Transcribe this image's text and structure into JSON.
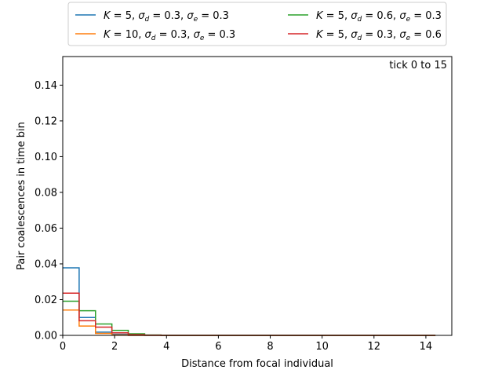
{
  "chart_data": {
    "type": "line",
    "drawstyle": "steps-post",
    "annotation": "tick 0 to 15",
    "xlabel": "Distance from focal individual",
    "ylabel": "Pair coalescences in time bin",
    "xlim": [
      0,
      15
    ],
    "ylim": [
      0,
      0.156
    ],
    "xticks": [
      0,
      2,
      4,
      6,
      8,
      10,
      12,
      14
    ],
    "yticks": [
      0.0,
      0.02,
      0.04,
      0.06,
      0.08,
      0.1,
      0.12,
      0.14
    ],
    "xtick_labels": [
      "0",
      "2",
      "4",
      "6",
      "8",
      "10",
      "12",
      "14"
    ],
    "ytick_labels": [
      "0.00",
      "0.02",
      "0.04",
      "0.06",
      "0.08",
      "0.10",
      "0.12",
      "0.14"
    ],
    "grid": false,
    "legend_placement": "above plot, two columns",
    "bin_edges": [
      0.0,
      0.632,
      1.263,
      1.895,
      2.526,
      3.158,
      3.789,
      4.421,
      5.053,
      5.684,
      6.316,
      6.947,
      7.579,
      8.211,
      8.842,
      9.474,
      10.105,
      10.737,
      11.368,
      12.0,
      12.632,
      13.263,
      13.895,
      14.368
    ],
    "series": [
      {
        "name": "K=5, σd=0.3, σe=0.3",
        "legend": {
          "k": "5",
          "sd": "0.3",
          "se": "0.3"
        },
        "color": "#1f77b4",
        "values": [
          0.0378,
          0.01,
          0.0018,
          0.0006,
          0.0001,
          0,
          0,
          0,
          0,
          0,
          0,
          0,
          0,
          0,
          0,
          0,
          0,
          0,
          0,
          0,
          0,
          0,
          0
        ]
      },
      {
        "name": "K=10, σd=0.3, σe=0.3",
        "legend": {
          "k": "10",
          "sd": "0.3",
          "se": "0.3"
        },
        "color": "#ff7f0e",
        "values": [
          0.0142,
          0.0052,
          0.0011,
          0.0002,
          0.0,
          0,
          0,
          0,
          0,
          0,
          0,
          0,
          0,
          0,
          0,
          0,
          0,
          0,
          0,
          0,
          0,
          0,
          0
        ]
      },
      {
        "name": "K=5, σd=0.6, σe=0.3",
        "legend": {
          "k": "5",
          "sd": "0.6",
          "se": "0.3"
        },
        "color": "#2ca02c",
        "values": [
          0.0191,
          0.0138,
          0.0064,
          0.0028,
          0.0009,
          0.0002,
          0,
          0,
          0,
          0,
          0,
          0,
          0,
          0,
          0,
          0,
          0,
          0,
          0,
          0,
          0,
          0,
          0
        ]
      },
      {
        "name": "K=5, σd=0.3, σe=0.6",
        "legend": {
          "k": "5",
          "sd": "0.3",
          "se": "0.6"
        },
        "color": "#d62728",
        "values": [
          0.0236,
          0.0082,
          0.0046,
          0.0014,
          0.0004,
          0.0001,
          0,
          0,
          0,
          0,
          0,
          0,
          0,
          0,
          0,
          0,
          0,
          0,
          0,
          0,
          0,
          0,
          0
        ]
      }
    ]
  }
}
